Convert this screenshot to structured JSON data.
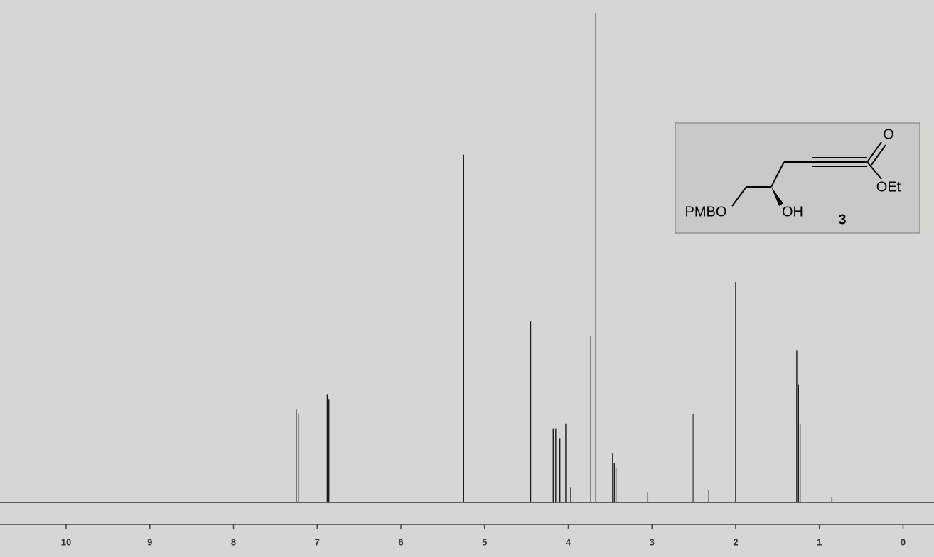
{
  "chart_data": {
    "type": "spectrum",
    "x": [
      7.25,
      7.22,
      6.88,
      6.86,
      5.25,
      4.45,
      4.18,
      4.15,
      4.1,
      4.03,
      3.97,
      3.73,
      3.67,
      3.47,
      3.45,
      3.43,
      3.05,
      2.52,
      2.5,
      2.32,
      2.0,
      1.27,
      1.25,
      1.23,
      0.85
    ],
    "values": [
      19,
      18,
      22,
      21,
      71,
      37,
      15,
      15,
      13,
      16,
      3,
      34,
      100,
      10,
      8,
      7,
      2,
      18,
      18,
      2.5,
      45,
      31,
      24,
      16,
      1
    ],
    "color": "#1a1a1a",
    "xlim": [
      10.79,
      -0.37
    ],
    "ylim": [
      0,
      100
    ],
    "xticks": [
      10,
      9,
      8,
      7,
      6,
      5,
      4,
      3,
      2,
      1,
      0
    ],
    "annotations": [
      "O",
      "OEt",
      "PMBO",
      "OH",
      "3"
    ]
  }
}
